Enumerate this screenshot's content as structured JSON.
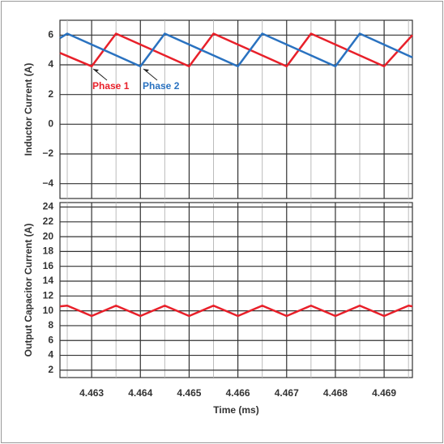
{
  "chart_data": [
    {
      "type": "line",
      "ylabel": "Inductor Current (A)",
      "xlim": [
        4.46235,
        4.46958
      ],
      "ylim": [
        -5,
        7
      ],
      "yticks": [
        {
          "value": -4,
          "label": "−4"
        },
        {
          "value": -2,
          "label": "−2"
        },
        0,
        2,
        4,
        6
      ],
      "grid": true,
      "series": [
        {
          "name": "Phase 1",
          "color": "#e8202a",
          "x": [
            4.46235,
            4.463,
            4.4635,
            4.465,
            4.4655,
            4.467,
            4.4675,
            4.469,
            4.46958
          ],
          "values": [
            4.8,
            3.9,
            6.1,
            3.9,
            6.1,
            3.9,
            6.1,
            3.9,
            6.0
          ]
        },
        {
          "name": "Phase 2",
          "color": "#2a72c0",
          "x": [
            4.46235,
            4.4625,
            4.464,
            4.4645,
            4.466,
            4.4665,
            4.468,
            4.4685,
            4.46958
          ],
          "values": [
            5.8,
            6.1,
            3.9,
            6.1,
            3.9,
            6.1,
            3.9,
            6.1,
            4.5
          ]
        }
      ]
    },
    {
      "type": "line",
      "ylabel": "Output Capacitor Current (A)",
      "xlabel": "Time (ms)",
      "xlim": [
        4.46235,
        4.46958
      ],
      "ylim": [
        1,
        24.6
      ],
      "xticks": [
        4.463,
        4.464,
        4.465,
        4.466,
        4.467,
        4.468,
        4.469
      ],
      "x_minor_ticks": [
        4.4625,
        4.4635,
        4.4645,
        4.4655,
        4.4665,
        4.4675,
        4.4685,
        4.4695
      ],
      "yticks": [
        2,
        4,
        6,
        8,
        10,
        12,
        14,
        16,
        18,
        20,
        22,
        24
      ],
      "grid": true,
      "series": [
        {
          "color": "#e8202a",
          "x": [
            4.46235,
            4.4625,
            4.463,
            4.4635,
            4.464,
            4.4645,
            4.465,
            4.4655,
            4.466,
            4.4665,
            4.467,
            4.4675,
            4.468,
            4.4685,
            4.469,
            4.4695,
            4.46958
          ],
          "values": [
            10.6,
            10.7,
            9.3,
            10.7,
            9.3,
            10.7,
            9.3,
            10.7,
            9.3,
            10.7,
            9.3,
            10.7,
            9.3,
            10.7,
            9.3,
            10.7,
            10.6
          ]
        }
      ]
    }
  ]
}
